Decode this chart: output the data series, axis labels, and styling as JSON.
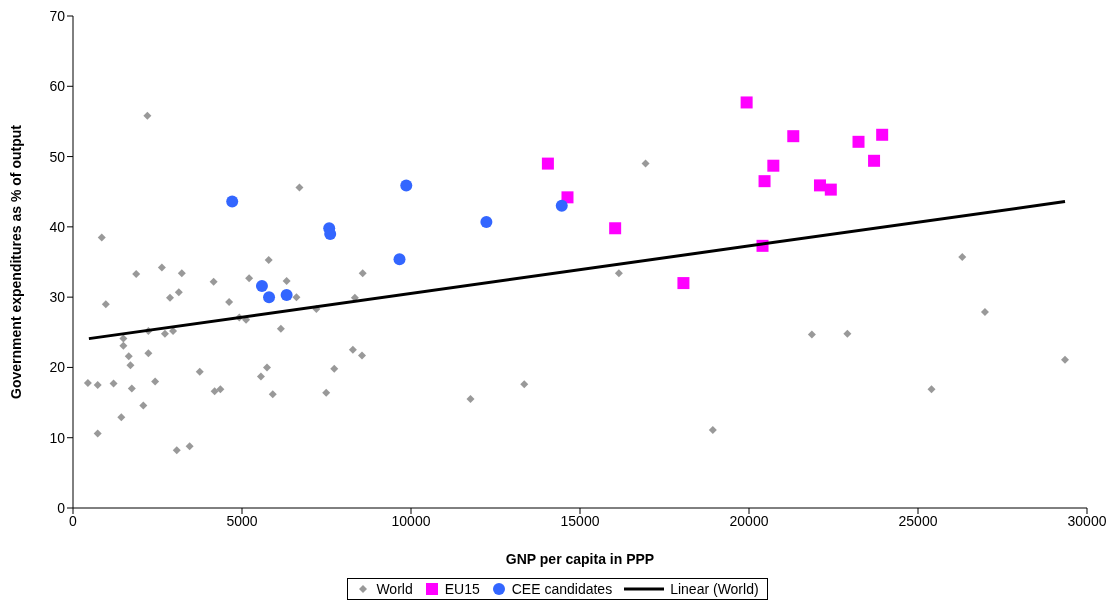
{
  "chart_data": {
    "type": "scatter",
    "xlabel": "GNP per capita in PPP",
    "ylabel": "Government expenditures as % of output",
    "xlim": [
      0,
      30000
    ],
    "xticks": [
      0,
      5000,
      10000,
      15000,
      20000,
      25000,
      30000
    ],
    "ylim": [
      0,
      70
    ],
    "yticks": [
      0,
      10,
      20,
      30,
      40,
      50,
      60,
      70
    ],
    "grid": false,
    "legend": "bottom",
    "series": [
      {
        "name": "World",
        "type": "scatter",
        "marker": "diamond",
        "color": "#999999",
        "x": [
          440,
          730,
          730,
          850,
          970,
          1200,
          1430,
          1490,
          1490,
          1650,
          1700,
          1740,
          1870,
          2080,
          2200,
          2230,
          2230,
          2430,
          2630,
          2720,
          2870,
          2960,
          3070,
          3130,
          3220,
          3450,
          3750,
          4160,
          4190,
          4360,
          4620,
          4920,
          5120,
          5210,
          5560,
          5740,
          5790,
          5910,
          6150,
          6320,
          6610,
          6700,
          7200,
          7490,
          7730,
          8280,
          8340,
          8550,
          8570,
          11760,
          13350,
          16150,
          16940,
          18930,
          21860,
          22910,
          25400,
          26310,
          26980,
          29350
        ],
        "values": [
          17.8,
          17.5,
          10.6,
          38.5,
          29.0,
          17.7,
          12.9,
          24.1,
          23.1,
          21.6,
          20.3,
          17.0,
          33.3,
          14.6,
          55.8,
          25.2,
          22.0,
          18.0,
          34.2,
          24.8,
          29.9,
          25.2,
          8.2,
          30.7,
          33.4,
          8.8,
          19.4,
          32.2,
          16.6,
          16.9,
          29.3,
          27.1,
          26.8,
          32.7,
          18.7,
          20.0,
          35.3,
          16.2,
          25.5,
          32.3,
          30.0,
          45.6,
          28.3,
          16.4,
          19.8,
          22.5,
          29.9,
          21.7,
          33.4,
          15.5,
          17.6,
          33.4,
          49.0,
          11.1,
          24.7,
          24.8,
          16.9,
          35.7,
          27.9,
          21.1
        ]
      },
      {
        "name": "EU15",
        "type": "scatter",
        "marker": "square",
        "color": "#ff00ff",
        "x": [
          14050,
          14630,
          16040,
          18060,
          19930,
          20400,
          20460,
          20720,
          21310,
          22100,
          22420,
          23240,
          23700,
          23940
        ],
        "values": [
          49.0,
          44.2,
          39.8,
          32.0,
          57.7,
          37.3,
          46.5,
          48.7,
          52.9,
          45.9,
          45.3,
          52.1,
          49.4,
          53.1
        ]
      },
      {
        "name": "CEE candidates",
        "type": "scatter",
        "marker": "circle",
        "color": "#3366ff",
        "x": [
          4710,
          5590,
          5800,
          6320,
          7580,
          7610,
          9660,
          9860,
          12230,
          14460
        ],
        "values": [
          43.6,
          31.6,
          30.0,
          30.3,
          39.8,
          39.0,
          35.4,
          45.9,
          40.7,
          43.0
        ]
      },
      {
        "name": "Linear (World)",
        "type": "line",
        "marker": "none",
        "line_style": "solid",
        "color": "#000000",
        "x": [
          470,
          29350
        ],
        "values": [
          24.1,
          43.6
        ]
      }
    ]
  }
}
